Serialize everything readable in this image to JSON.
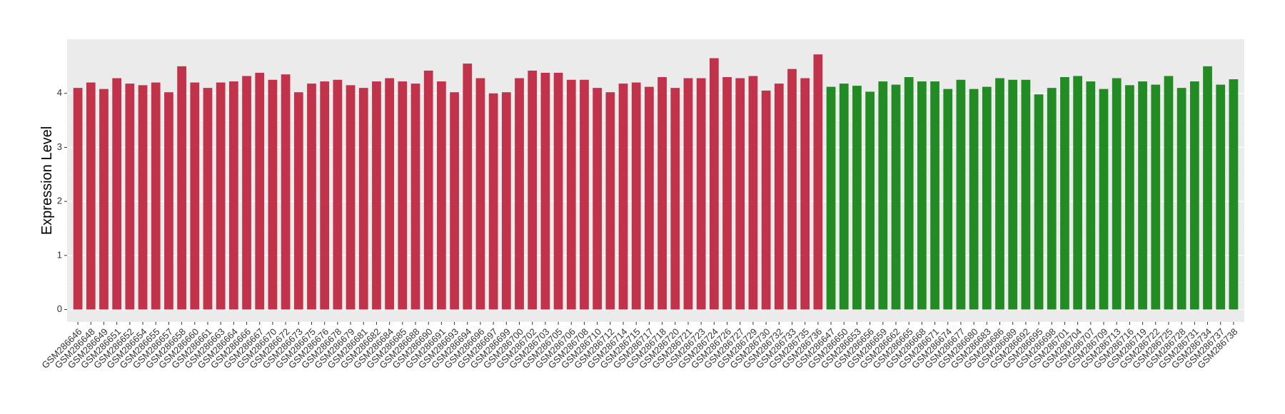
{
  "chart_data": {
    "type": "bar",
    "y_label": "Expression Level",
    "ylim": [
      -0.23,
      5.0
    ],
    "yticks": [
      0,
      1,
      2,
      3,
      4
    ],
    "grid": true,
    "series": [
      {
        "color": "#c0334b",
        "categories": [
          "GSM286646",
          "GSM286648",
          "GSM286649",
          "GSM286651",
          "GSM286652",
          "GSM286654",
          "GSM286655",
          "GSM286657",
          "GSM286658",
          "GSM286660",
          "GSM286661",
          "GSM286663",
          "GSM286664",
          "GSM286666",
          "GSM286667",
          "GSM286670",
          "GSM286672",
          "GSM286673",
          "GSM286675",
          "GSM286676",
          "GSM286678",
          "GSM286679",
          "GSM286681",
          "GSM286682",
          "GSM286684",
          "GSM286685",
          "GSM286688",
          "GSM286690",
          "GSM286691",
          "GSM286693",
          "GSM286694",
          "GSM286696",
          "GSM286697",
          "GSM286699",
          "GSM286700",
          "GSM286702",
          "GSM286703",
          "GSM286705",
          "GSM286706",
          "GSM286708",
          "GSM286710",
          "GSM286712",
          "GSM286714",
          "GSM286715",
          "GSM286717",
          "GSM286718",
          "GSM286720",
          "GSM286721",
          "GSM286723",
          "GSM286724",
          "GSM286726",
          "GSM286727",
          "GSM286729",
          "GSM286730",
          "GSM286732",
          "GSM286733",
          "GSM286735",
          "GSM286736"
        ],
        "values": [
          4.1,
          4.2,
          4.08,
          4.28,
          4.18,
          4.15,
          4.2,
          4.02,
          4.5,
          4.2,
          4.1,
          4.2,
          4.22,
          4.32,
          4.38,
          4.25,
          4.35,
          4.02,
          4.18,
          4.22,
          4.25,
          4.15,
          4.1,
          4.22,
          4.28,
          4.22,
          4.18,
          4.42,
          4.22,
          4.02,
          4.55,
          4.28,
          4.0,
          4.02,
          4.28,
          4.42,
          4.38,
          4.38,
          4.25,
          4.25,
          4.1,
          4.02,
          4.18,
          4.2,
          4.12,
          4.3,
          4.1,
          4.28,
          4.28,
          4.65,
          4.3,
          4.28,
          4.32,
          4.05,
          4.18,
          4.45,
          4.28,
          4.72
        ]
      },
      {
        "color": "#238b23",
        "categories": [
          "GSM286647",
          "GSM286650",
          "GSM286653",
          "GSM286656",
          "GSM286659",
          "GSM286662",
          "GSM286665",
          "GSM286668",
          "GSM286671",
          "GSM286674",
          "GSM286677",
          "GSM286680",
          "GSM286683",
          "GSM286686",
          "GSM286689",
          "GSM286692",
          "GSM286695",
          "GSM286698",
          "GSM286701",
          "GSM286704",
          "GSM286707",
          "GSM286709",
          "GSM286713",
          "GSM286716",
          "GSM286719",
          "GSM286722",
          "GSM286725",
          "GSM286728",
          "GSM286731",
          "GSM286734",
          "GSM286737",
          "GSM286738"
        ],
        "values": [
          4.12,
          4.18,
          4.14,
          4.03,
          4.22,
          4.16,
          4.3,
          4.22,
          4.22,
          4.08,
          4.25,
          4.08,
          4.12,
          4.28,
          4.25,
          4.25,
          3.98,
          4.1,
          4.3,
          4.32,
          4.22,
          4.08,
          4.28,
          4.15,
          4.22,
          4.16,
          4.32,
          4.1,
          4.22,
          4.5,
          4.16,
          4.26
        ]
      }
    ]
  }
}
